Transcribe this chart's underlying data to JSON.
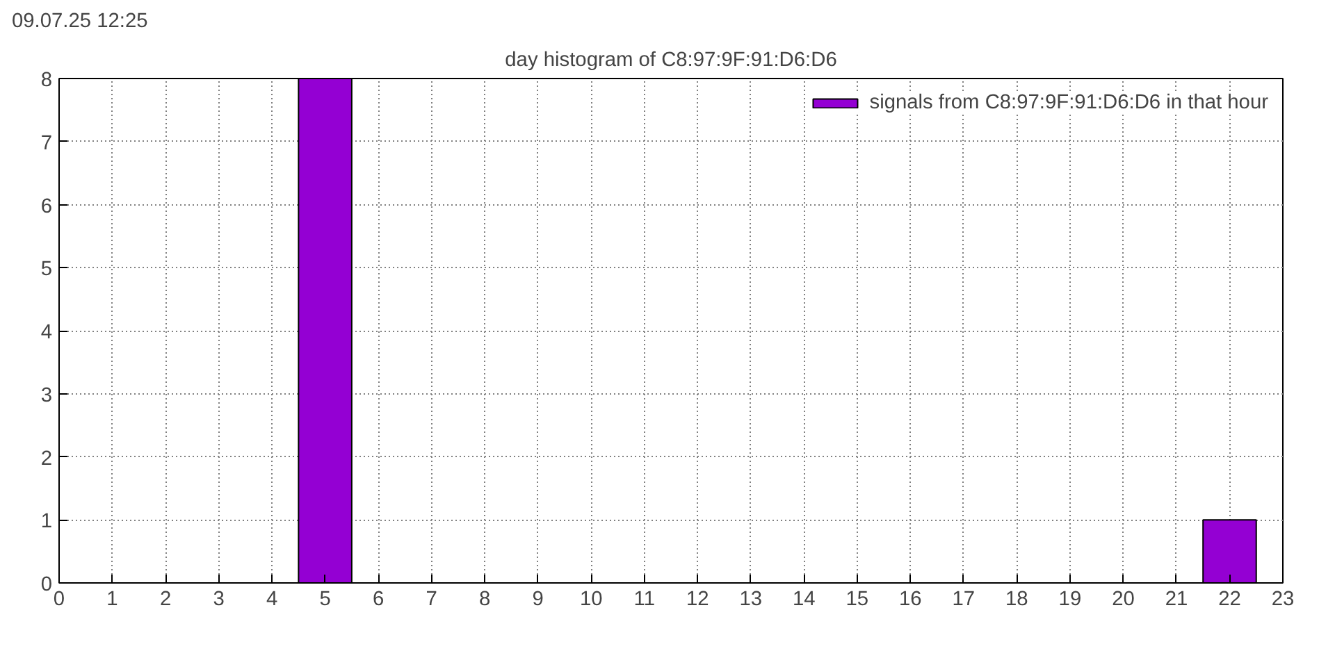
{
  "chart_data": {
    "type": "bar",
    "title": "day histogram of C8:97:9F:91:D6:D6",
    "annotations": [
      "09.07.25 12:25"
    ],
    "x": [
      5,
      22
    ],
    "series": [
      {
        "name": "signals from C8:97:9F:91:D6:D6 in that hour",
        "color": "#9400d3",
        "values": [
          8,
          1
        ]
      }
    ],
    "xlim": [
      0,
      23
    ],
    "xticks": [
      0,
      1,
      2,
      3,
      4,
      5,
      6,
      7,
      8,
      9,
      10,
      11,
      12,
      13,
      14,
      15,
      16,
      17,
      18,
      19,
      20,
      21,
      22,
      23
    ],
    "ylim": [
      0,
      8
    ],
    "yticks": [
      0,
      1,
      2,
      3,
      4,
      5,
      6,
      7,
      8
    ],
    "grid": true,
    "line_style": "dotted",
    "legend": "top right"
  }
}
